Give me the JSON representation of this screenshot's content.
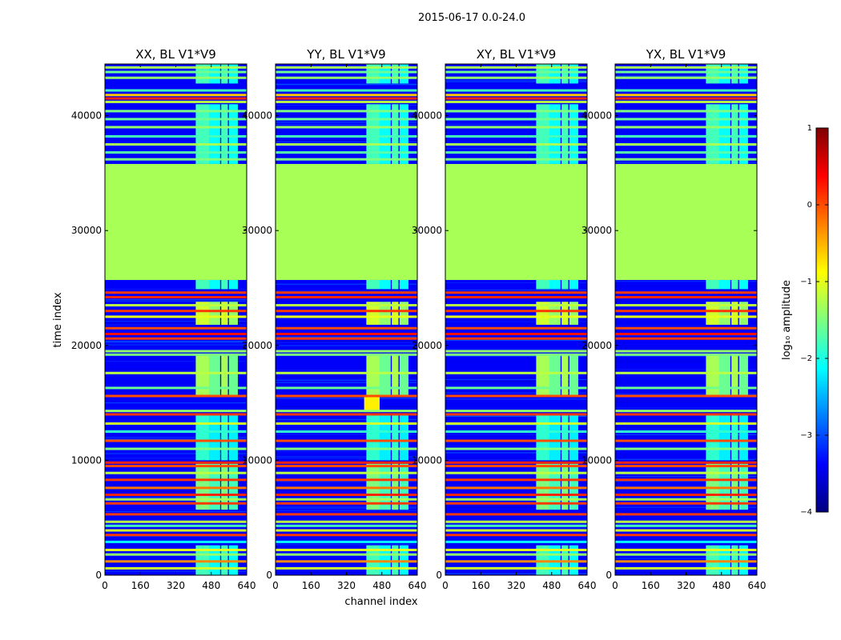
{
  "chart_data": {
    "type": "heatmap",
    "suptitle": "2015-06-17 0.0-24.0",
    "xlabel": "channel index",
    "ylabel": "time index",
    "xlim": [
      0,
      640
    ],
    "ylim": [
      0,
      44500
    ],
    "xticks": [
      0,
      160,
      320,
      480,
      640
    ],
    "yticks": [
      0,
      10000,
      20000,
      30000,
      40000
    ],
    "colorbar": {
      "label": "log₁₀ amplitude",
      "range": [
        -4,
        1
      ],
      "ticks": [
        "−4",
        "−3",
        "−2",
        "−1",
        "0",
        "1"
      ],
      "colormap": [
        "#00007f",
        "#0000ff",
        "#007fff",
        "#00ffff",
        "#7fff7f",
        "#ffff00",
        "#ff7f00",
        "#ff0000",
        "#7f0000"
      ]
    },
    "panels": [
      {
        "title": "XX, BL V1*V9",
        "hot_band": null
      },
      {
        "title": "YY, BL V1*V9",
        "hot_band": {
          "time": [
            14200,
            15500
          ],
          "channel": [
            400,
            470
          ],
          "value": -0.8
        }
      },
      {
        "title": "XY, BL V1*V9",
        "hot_band": null
      },
      {
        "title": "YX, BL V1*V9",
        "hot_band": null
      }
    ],
    "background_level": -3.4,
    "gap": {
      "time": [
        25700,
        35800
      ],
      "value": -1.3
    },
    "rfi_channel_ranges": [
      [
        410,
        470
      ],
      [
        470,
        520
      ],
      [
        525,
        555
      ],
      [
        560,
        600
      ]
    ],
    "rfi_segments": [
      {
        "time": [
          0,
          2600
        ],
        "level": -1.9
      },
      {
        "time": [
          5700,
          9700
        ],
        "level": -1.6
      },
      {
        "time": [
          10000,
          14000
        ],
        "level": -2.0
      },
      {
        "time": [
          15500,
          19200
        ],
        "level": -1.4
      },
      {
        "time": [
          21800,
          23800
        ],
        "level": -1.2
      },
      {
        "time": [
          24900,
          25700
        ],
        "level": -1.9
      },
      {
        "time": [
          35800,
          41000
        ],
        "level": -1.9
      },
      {
        "time": [
          42800,
          44500
        ],
        "level": -1.9
      }
    ],
    "flag_lines": [
      {
        "time": 600,
        "level": -1.1
      },
      {
        "time": 1200,
        "level": -0.3
      },
      {
        "time": 1800,
        "level": -1.4
      },
      {
        "time": 2200,
        "level": -1.0
      },
      {
        "time": 2900,
        "level": -2.1
      },
      {
        "time": 3500,
        "level": 0.1
      },
      {
        "time": 3900,
        "level": -1.1
      },
      {
        "time": 4300,
        "level": -1.8
      },
      {
        "time": 4650,
        "level": -1.2
      },
      {
        "time": 5300,
        "level": 0.1
      },
      {
        "time": 6250,
        "level": 0.1
      },
      {
        "time": 6600,
        "level": -1.3
      },
      {
        "time": 7000,
        "level": 0.2
      },
      {
        "time": 7600,
        "level": -0.2
      },
      {
        "time": 8300,
        "level": 0.1
      },
      {
        "time": 8900,
        "level": -1.2
      },
      {
        "time": 9500,
        "level": 0.0
      },
      {
        "time": 9800,
        "level": 0.2
      },
      {
        "time": 11000,
        "level": -1.5
      },
      {
        "time": 11700,
        "level": 0.0
      },
      {
        "time": 12500,
        "level": -1.9
      },
      {
        "time": 13200,
        "level": -1.1
      },
      {
        "time": 14000,
        "level": 0.1
      },
      {
        "time": 14300,
        "level": -1.4
      },
      {
        "time": 15600,
        "level": 0.0
      },
      {
        "time": 16300,
        "level": -1.6
      },
      {
        "time": 17600,
        "level": -1.2
      },
      {
        "time": 19200,
        "level": -1.5
      },
      {
        "time": 19500,
        "level": -1.4
      },
      {
        "time": 20600,
        "level": 0.1
      },
      {
        "time": 21000,
        "level": 0.3
      },
      {
        "time": 21500,
        "level": 0.0
      },
      {
        "time": 22500,
        "level": -1.0
      },
      {
        "time": 23000,
        "level": 0.1
      },
      {
        "time": 23500,
        "level": -1.2
      },
      {
        "time": 24200,
        "level": 0.2
      },
      {
        "time": 24600,
        "level": 0.1
      },
      {
        "time": 36200,
        "level": -1.5
      },
      {
        "time": 36800,
        "level": -1.7
      },
      {
        "time": 37500,
        "level": -1.3
      },
      {
        "time": 38200,
        "level": -1.8
      },
      {
        "time": 39000,
        "level": -1.4
      },
      {
        "time": 39700,
        "level": -1.6
      },
      {
        "time": 40400,
        "level": -1.5
      },
      {
        "time": 41200,
        "level": -1.2
      },
      {
        "time": 41500,
        "level": 0.2
      },
      {
        "time": 41800,
        "level": -0.6
      },
      {
        "time": 42200,
        "level": -1.8
      },
      {
        "time": 43300,
        "level": -1.4
      },
      {
        "time": 43800,
        "level": -1.6
      },
      {
        "time": 44200,
        "level": -1.3
      }
    ]
  }
}
